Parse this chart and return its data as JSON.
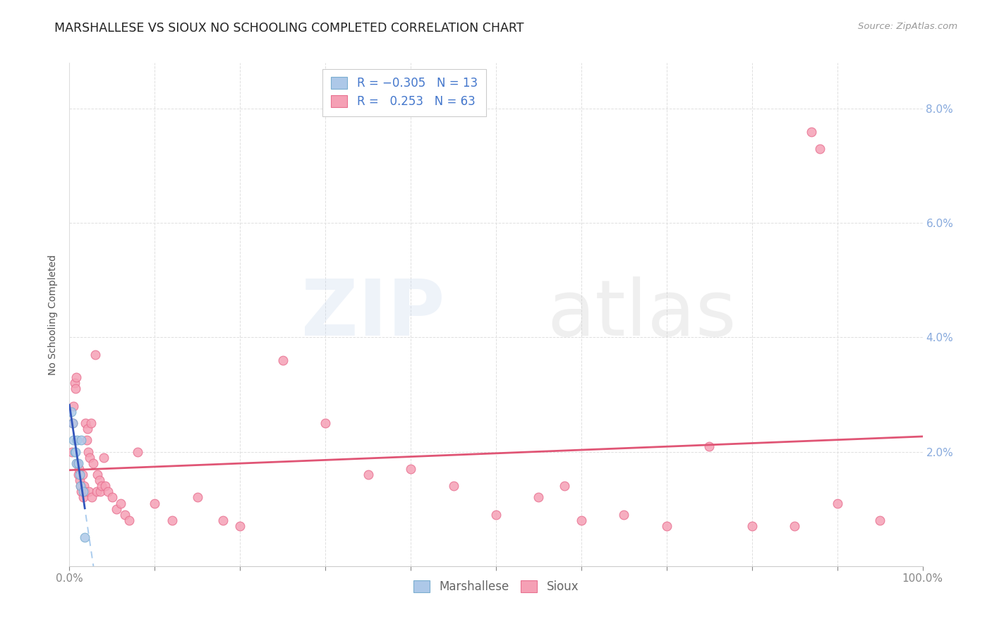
{
  "title": "MARSHALLESE VS SIOUX NO SCHOOLING COMPLETED CORRELATION CHART",
  "source": "Source: ZipAtlas.com",
  "ylabel": "No Schooling Completed",
  "xlim": [
    0,
    1.0
  ],
  "ylim": [
    0,
    0.088
  ],
  "xtick_vals": [
    0,
    0.1,
    0.2,
    0.3,
    0.4,
    0.5,
    0.6,
    0.7,
    0.8,
    0.9,
    1.0
  ],
  "xtick_labels_show": [
    "0.0%",
    "",
    "",
    "",
    "",
    "",
    "",
    "",
    "",
    "",
    "100.0%"
  ],
  "ytick_vals": [
    0,
    0.02,
    0.04,
    0.06,
    0.08
  ],
  "ytick_labels": [
    "",
    "2.0%",
    "4.0%",
    "6.0%",
    "8.0%"
  ],
  "marshallese_color": "#adc8e8",
  "sioux_color": "#f5a0b5",
  "marshallese_edge": "#7aaed0",
  "sioux_edge": "#e87090",
  "blue_line_color": "#3355bb",
  "pink_line_color": "#e05575",
  "dashed_line_color": "#aaccee",
  "background_color": "#ffffff",
  "grid_color": "#e0e0e0",
  "marshallese_x": [
    0.002,
    0.004,
    0.005,
    0.006,
    0.007,
    0.008,
    0.009,
    0.01,
    0.012,
    0.013,
    0.014,
    0.016,
    0.018
  ],
  "marshallese_y": [
    0.027,
    0.025,
    0.022,
    0.02,
    0.02,
    0.018,
    0.022,
    0.018,
    0.016,
    0.014,
    0.022,
    0.013,
    0.005
  ],
  "sioux_x": [
    0.003,
    0.004,
    0.005,
    0.006,
    0.007,
    0.008,
    0.009,
    0.01,
    0.011,
    0.012,
    0.013,
    0.014,
    0.015,
    0.016,
    0.017,
    0.018,
    0.019,
    0.02,
    0.021,
    0.022,
    0.023,
    0.024,
    0.025,
    0.026,
    0.028,
    0.03,
    0.032,
    0.033,
    0.035,
    0.036,
    0.038,
    0.04,
    0.042,
    0.045,
    0.05,
    0.055,
    0.06,
    0.065,
    0.07,
    0.08,
    0.1,
    0.12,
    0.15,
    0.18,
    0.2,
    0.25,
    0.3,
    0.35,
    0.4,
    0.45,
    0.5,
    0.55,
    0.58,
    0.6,
    0.65,
    0.7,
    0.75,
    0.8,
    0.85,
    0.87,
    0.88,
    0.9,
    0.95
  ],
  "sioux_y": [
    0.02,
    0.025,
    0.028,
    0.032,
    0.031,
    0.033,
    0.018,
    0.016,
    0.017,
    0.015,
    0.014,
    0.013,
    0.016,
    0.012,
    0.014,
    0.013,
    0.025,
    0.022,
    0.024,
    0.02,
    0.013,
    0.019,
    0.025,
    0.012,
    0.018,
    0.037,
    0.013,
    0.016,
    0.015,
    0.013,
    0.014,
    0.019,
    0.014,
    0.013,
    0.012,
    0.01,
    0.011,
    0.009,
    0.008,
    0.02,
    0.011,
    0.008,
    0.012,
    0.008,
    0.007,
    0.036,
    0.025,
    0.016,
    0.017,
    0.014,
    0.009,
    0.012,
    0.014,
    0.008,
    0.009,
    0.007,
    0.021,
    0.007,
    0.007,
    0.076,
    0.073,
    0.011,
    0.008
  ],
  "marker_size": 85,
  "title_fontsize": 12.5,
  "axis_label_fontsize": 10,
  "tick_fontsize": 11,
  "legend_fontsize": 12,
  "right_tick_color": "#88aadd",
  "label_color": "#555555",
  "tick_color": "#888888"
}
